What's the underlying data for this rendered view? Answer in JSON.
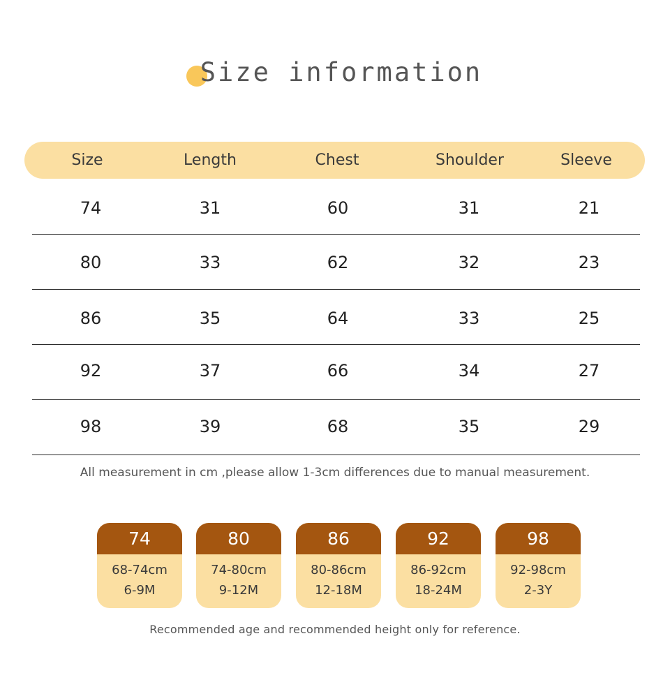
{
  "title": "Size information",
  "table": {
    "headers": [
      "Size",
      "Length",
      "Chest",
      "Shoulder",
      "Sleeve"
    ],
    "rows": [
      [
        "74",
        "31",
        "60",
        "31",
        "21"
      ],
      [
        "80",
        "33",
        "62",
        "32",
        "23"
      ],
      [
        "86",
        "35",
        "64",
        "33",
        "25"
      ],
      [
        "92",
        "37",
        "66",
        "34",
        "27"
      ],
      [
        "98",
        "39",
        "68",
        "35",
        "29"
      ]
    ]
  },
  "note": "All measurement in cm ,please allow 1-3cm differences due to manual measurement.",
  "cards": [
    {
      "size": "74",
      "height": "68-74cm",
      "age": "6-9M"
    },
    {
      "size": "80",
      "height": "74-80cm",
      "age": "9-12M"
    },
    {
      "size": "86",
      "height": "80-86cm",
      "age": "12-18M"
    },
    {
      "size": "92",
      "height": "86-92cm",
      "age": "18-24M"
    },
    {
      "size": "98",
      "height": "92-98cm",
      "age": "2-3Y"
    }
  ],
  "footer": "Recommended age and recommended height only for reference.",
  "colors": {
    "accent_light": "#fbdfa2",
    "accent_dark": "#a45610",
    "dot": "#f9c75a"
  }
}
